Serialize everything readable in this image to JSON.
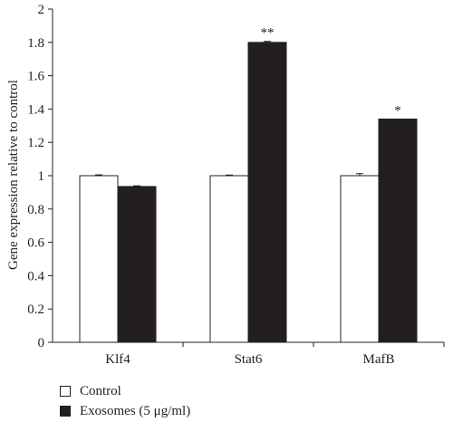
{
  "chart_data": {
    "type": "bar",
    "categories": [
      "Klf4",
      "Stat6",
      "MafB"
    ],
    "series": [
      {
        "name": "Control",
        "values": [
          1.0,
          1.0,
          1.0
        ],
        "errors": [
          0.005,
          0.004,
          0.012
        ],
        "color": "#ffffff"
      },
      {
        "name": "Exosomes (5 μg/ml)",
        "values": [
          0.935,
          1.8,
          1.34
        ],
        "errors": [
          0.004,
          0.006,
          0.0
        ],
        "color": "#231f20"
      }
    ],
    "significance": [
      "",
      "**",
      "*"
    ],
    "ylabel": "Gene expression relative to control",
    "xlabel": "",
    "ylim": [
      0,
      2
    ],
    "yticks": [
      "0",
      "0.2",
      "0.4",
      "0.6",
      "0.8",
      "1",
      "1.2",
      "1.4",
      "1.6",
      "1.8",
      "2"
    ],
    "grid": false,
    "legend_position": "bottom-left"
  },
  "legend": {
    "control": "Control",
    "exosomes": "Exosomes (5 μg/ml)"
  }
}
